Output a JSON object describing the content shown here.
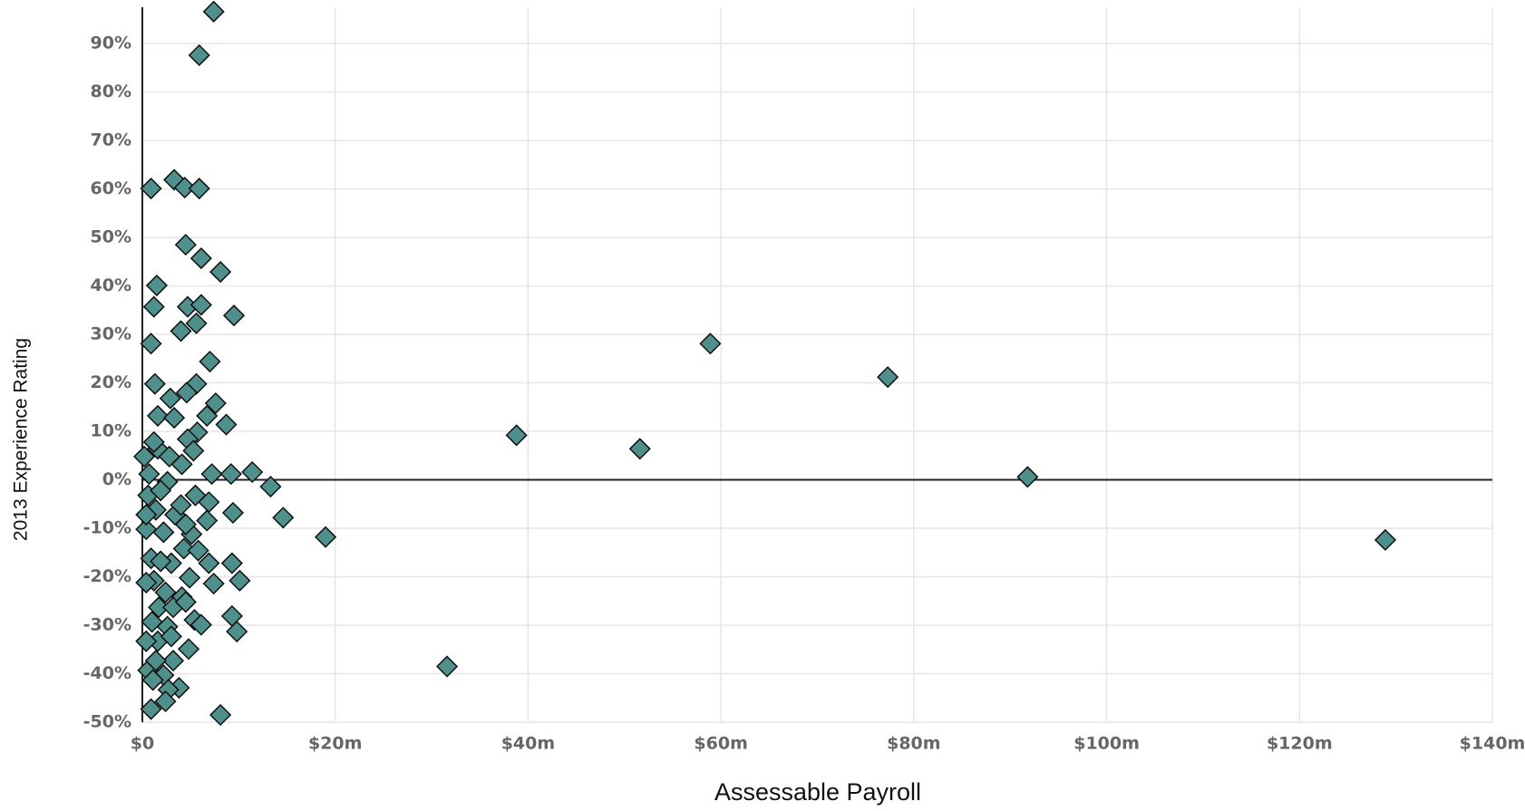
{
  "chart_data": {
    "type": "scatter",
    "x_label": "Assessable Payroll",
    "y_label": "2013 Experience Rating",
    "color": "#4f8f8c",
    "grid": true,
    "xlim": [
      0,
      140
    ],
    "ylim": [
      -50,
      97.5
    ],
    "xticks": [
      {
        "value": 0,
        "label": "$0"
      },
      {
        "value": 20,
        "label": "$20m"
      },
      {
        "value": 40,
        "label": "$40m"
      },
      {
        "value": 60,
        "label": "$60m"
      },
      {
        "value": 80,
        "label": "$80m"
      },
      {
        "value": 100,
        "label": "$100m"
      },
      {
        "value": 120,
        "label": "$120m"
      },
      {
        "value": 140,
        "label": "$140m"
      }
    ],
    "yticks": [
      {
        "value": -50,
        "label": "-50%"
      },
      {
        "value": -40,
        "label": "-40%"
      },
      {
        "value": -30,
        "label": "-30%"
      },
      {
        "value": -20,
        "label": "-20%"
      },
      {
        "value": -10,
        "label": "-10%"
      },
      {
        "value": 0,
        "label": "0%"
      },
      {
        "value": 10,
        "label": "10%"
      },
      {
        "value": 20,
        "label": "20%"
      },
      {
        "value": 30,
        "label": "30%"
      },
      {
        "value": 40,
        "label": "40%"
      },
      {
        "value": 50,
        "label": "50%"
      },
      {
        "value": 60,
        "label": "60%"
      },
      {
        "value": 70,
        "label": "70%"
      },
      {
        "value": 80,
        "label": "80%"
      },
      {
        "value": 90,
        "label": "90%"
      }
    ],
    "x": [
      7.4,
      5.9,
      0.9,
      3.3,
      4.4,
      5.9,
      4.5,
      6.1,
      8.1,
      1.5,
      1.2,
      4.7,
      6.1,
      9.5,
      5.6,
      4.0,
      0.9,
      7.0,
      58.9,
      77.3,
      1.3,
      5.6,
      2.9,
      4.6,
      7.6,
      1.6,
      3.3,
      6.7,
      8.7,
      5.7,
      38.8,
      51.6,
      4.7,
      5.3,
      1.6,
      2.8,
      4.1,
      7.2,
      9.2,
      11.4,
      91.8,
      13.3,
      2.6,
      0.7,
      5.5,
      6.9,
      14.6,
      9.4,
      6.7,
      19.0,
      128.9,
      1.4,
      3.4,
      0.4,
      2.2,
      5.1,
      4.3,
      5.8,
      0.9,
      9.3,
      6.9,
      3.0,
      4.9,
      10.1,
      7.4,
      1.2,
      2.4,
      4.1,
      1.7,
      3.2,
      9.3,
      5.4,
      6.1,
      9.8,
      1.0,
      2.6,
      1.6,
      4.8,
      3.2,
      0.6,
      31.6,
      2.2,
      3.8,
      2.7,
      0.9,
      2.4,
      8.1,
      1.1,
      0.4,
      1.9,
      4.5,
      0.6,
      1.9,
      4.0,
      0.2,
      1.2,
      0.4,
      3.0,
      4.5,
      1.4,
      0.4
    ],
    "values": [
      96.6,
      87.6,
      60.1,
      61.9,
      60.3,
      60.1,
      48.5,
      45.7,
      42.9,
      40.1,
      35.7,
      35.7,
      36.1,
      33.9,
      32.3,
      30.7,
      28.1,
      24.4,
      28.1,
      21.2,
      19.8,
      19.8,
      16.8,
      18.0,
      15.8,
      13.2,
      12.8,
      13.2,
      11.4,
      9.8,
      9.2,
      6.4,
      8.4,
      6.0,
      6.4,
      4.8,
      3.2,
      1.2,
      1.2,
      1.6,
      0.6,
      -1.4,
      -0.4,
      1.2,
      -3.2,
      -4.6,
      -7.8,
      -6.8,
      -8.4,
      -11.8,
      -12.4,
      -6.2,
      -7.2,
      -10.2,
      -10.8,
      -11.2,
      -14.2,
      -14.6,
      -16.2,
      -17.2,
      -17.2,
      -17.2,
      -20.2,
      -20.8,
      -21.4,
      -20.8,
      -23.2,
      -24.2,
      -26.3,
      -26.3,
      -28.1,
      -28.9,
      -29.9,
      -31.3,
      -29.3,
      -30.3,
      -33.3,
      -34.9,
      -37.3,
      -39.3,
      -38.5,
      -40.3,
      -42.9,
      -43.3,
      -47.3,
      -45.7,
      -48.5,
      -41.3,
      -21.2,
      -16.8,
      -9.2,
      -3.2,
      -2.2,
      -5.2,
      4.8,
      7.8,
      -7.2,
      -32.3,
      -25.2,
      -37.3,
      -33.3
    ]
  }
}
